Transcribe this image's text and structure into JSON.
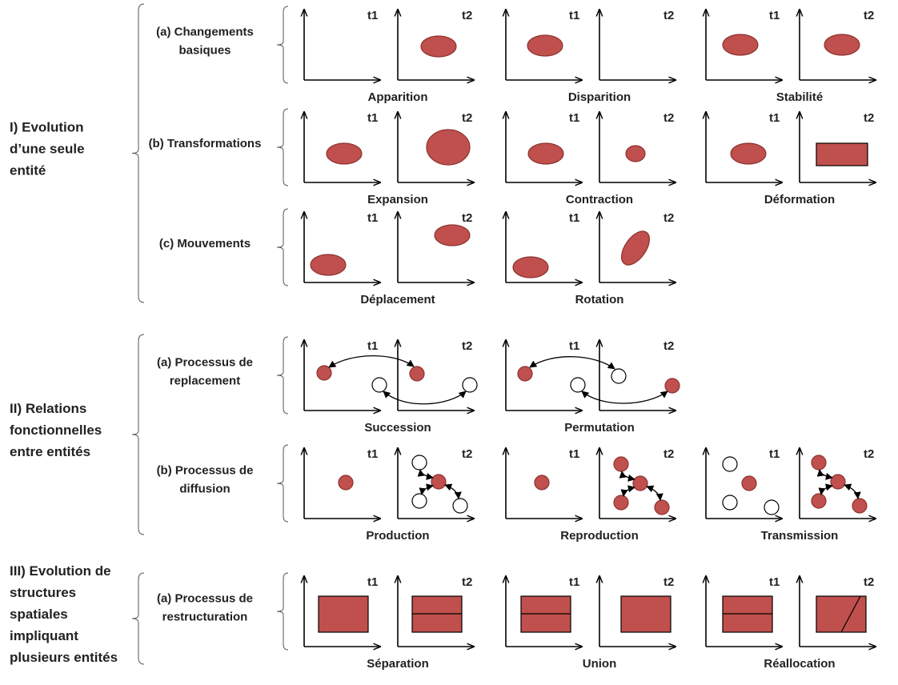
{
  "sections": [
    {
      "title_lines": [
        "I) Evolution",
        "d’une seule",
        "entité"
      ],
      "groups": [
        {
          "label_lines": [
            "(a) Changements",
            "basiques"
          ],
          "pairs": [
            {
              "caption": "Apparition",
              "t1": "t1",
              "t2": "t2"
            },
            {
              "caption": "Disparition",
              "t1": "t1",
              "t2": "t2"
            },
            {
              "caption": "Stabilité",
              "t1": "t1",
              "t2": "t2"
            }
          ]
        },
        {
          "label_lines": [
            "(b) Transformations"
          ],
          "pairs": [
            {
              "caption": "Expansion",
              "t1": "t1",
              "t2": "t2"
            },
            {
              "caption": "Contraction",
              "t1": "t1",
              "t2": "t2"
            },
            {
              "caption": "Déformation",
              "t1": "t1",
              "t2": "t2"
            }
          ]
        },
        {
          "label_lines": [
            "(c) Mouvements"
          ],
          "pairs": [
            {
              "caption": "Déplacement",
              "t1": "t1",
              "t2": "t2"
            },
            {
              "caption": "Rotation",
              "t1": "t1",
              "t2": "t2"
            }
          ]
        }
      ]
    },
    {
      "title_lines": [
        "II) Relations",
        "fonctionnelles",
        "entre entités"
      ],
      "groups": [
        {
          "label_lines": [
            "(a) Processus de",
            "replacement"
          ],
          "pairs": [
            {
              "caption": "Succession",
              "t1": "t1",
              "t2": "t2"
            },
            {
              "caption": "Permutation",
              "t1": "t1",
              "t2": "t2"
            }
          ]
        },
        {
          "label_lines": [
            "(b) Processus de",
            "diffusion"
          ],
          "pairs": [
            {
              "caption": "Production",
              "t1": "t1",
              "t2": "t2"
            },
            {
              "caption": "Reproduction",
              "t1": "t1",
              "t2": "t2"
            },
            {
              "caption": "Transmission",
              "t1": "t1",
              "t2": "t2"
            }
          ]
        }
      ]
    },
    {
      "title_lines": [
        "III) Evolution de",
        "structures",
        "spatiales",
        "impliquant",
        "plusieurs entités"
      ],
      "groups": [
        {
          "label_lines": [
            "(a) Processus de",
            "restructuration"
          ],
          "pairs": [
            {
              "caption": "Séparation",
              "t1": "t1",
              "t2": "t2"
            },
            {
              "caption": "Union",
              "t1": "t1",
              "t2": "t2"
            },
            {
              "caption": "Réallocation",
              "t1": "t1",
              "t2": "t2"
            }
          ]
        }
      ]
    }
  ]
}
